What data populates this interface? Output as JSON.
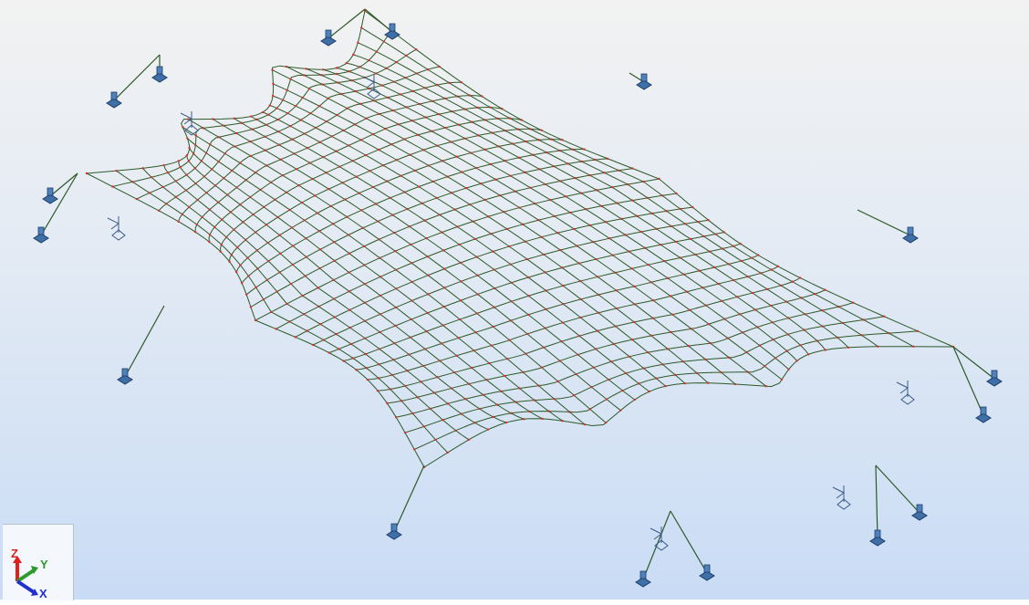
{
  "axis_gizmo": {
    "z": "Z",
    "y": "Y",
    "x": "X"
  }
}
